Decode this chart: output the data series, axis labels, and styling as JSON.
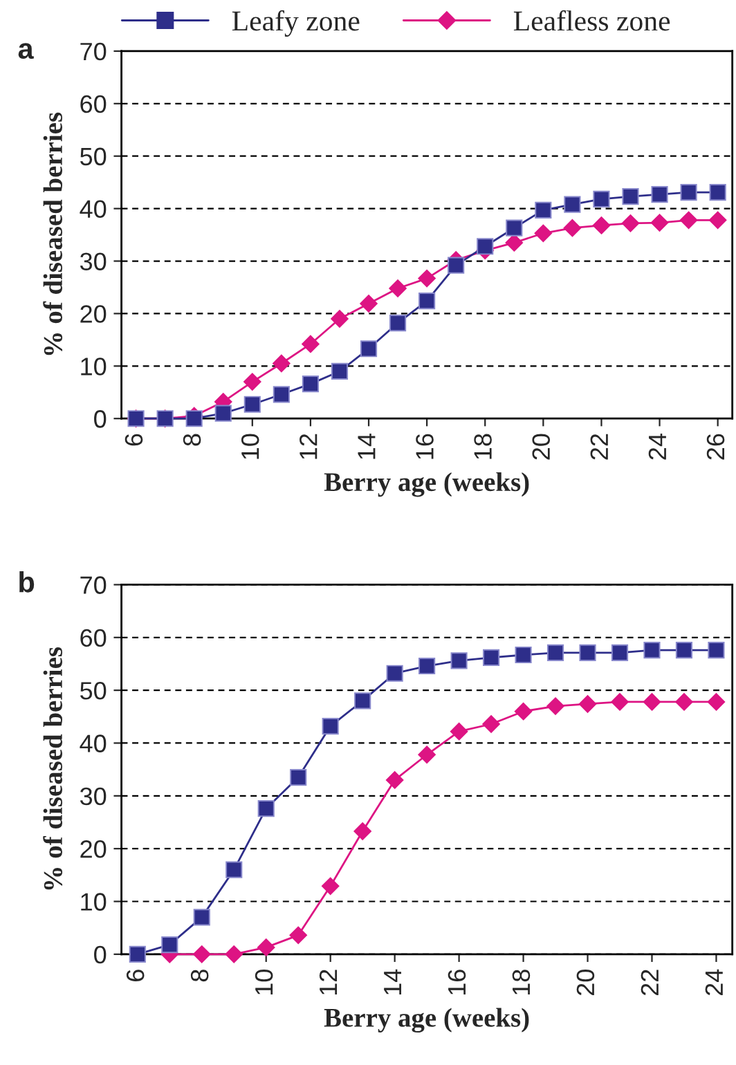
{
  "chart_data": [
    {
      "type": "line",
      "xlabel": "Berry age (weeks)",
      "ylabel": "% of diseased berries",
      "annotations": [
        "a"
      ],
      "x": [
        6,
        7,
        8,
        9,
        10,
        11,
        12,
        13,
        14,
        15,
        16,
        17,
        18,
        19,
        20,
        21,
        22,
        23,
        24,
        25,
        26
      ],
      "series": [
        {
          "name": "Leafy zone",
          "color": "#2e2e8a",
          "marker": "square",
          "values": [
            0,
            0,
            0,
            1,
            2.7,
            4.6,
            6.6,
            9,
            13.3,
            18.2,
            22.4,
            29.2,
            32.8,
            36.3,
            39.7,
            40.8,
            41.8,
            42.3,
            42.7,
            43.1,
            43.1
          ]
        },
        {
          "name": "Leafless zone",
          "color": "#dd1483",
          "marker": "diamond",
          "values": [
            0,
            0,
            0.5,
            3.2,
            7,
            10.5,
            14.2,
            19,
            21.9,
            24.8,
            26.7,
            30.2,
            32,
            33.5,
            35.3,
            36.3,
            36.8,
            37.2,
            37.3,
            37.8,
            37.8
          ]
        }
      ],
      "xlim": [
        5.5,
        26.5
      ],
      "xticks": [
        6,
        8,
        10,
        12,
        14,
        16,
        18,
        20,
        22,
        24,
        26
      ],
      "ylim": [
        0,
        70
      ],
      "yticks": [
        0,
        10,
        20,
        30,
        40,
        50,
        60,
        70
      ],
      "grid": "y",
      "legend": "top",
      "line_style": "solid"
    },
    {
      "type": "line",
      "xlabel": "Berry age (weeks)",
      "ylabel": "% of diseased berries",
      "annotations": [
        "b"
      ],
      "x": [
        6,
        7,
        8,
        9,
        10,
        11,
        12,
        13,
        14,
        15,
        16,
        17,
        18,
        19,
        20,
        21,
        22,
        23,
        24
      ],
      "series": [
        {
          "color": "#2e2e8a",
          "marker": "square",
          "values": [
            0,
            1.8,
            7,
            16,
            27.6,
            33.5,
            43.2,
            48,
            53.2,
            54.6,
            55.6,
            56.2,
            56.7,
            57.1,
            57.1,
            57.1,
            57.6,
            57.6,
            57.6
          ]
        },
        {
          "color": "#dd1483",
          "marker": "diamond",
          "values": [
            null,
            0,
            0,
            0,
            1.3,
            3.6,
            12.9,
            23.3,
            33,
            37.8,
            42.2,
            43.6,
            46,
            47,
            47.4,
            47.8,
            47.8,
            47.8,
            47.8
          ]
        }
      ],
      "xlim": [
        5.5,
        24.5
      ],
      "xticks": [
        6,
        8,
        10,
        12,
        14,
        16,
        18,
        20,
        22,
        24
      ],
      "ylim": [
        0,
        70
      ],
      "yticks": [
        0,
        10,
        20,
        30,
        40,
        50,
        60,
        70
      ],
      "grid": "y",
      "line_style": "solid"
    }
  ]
}
